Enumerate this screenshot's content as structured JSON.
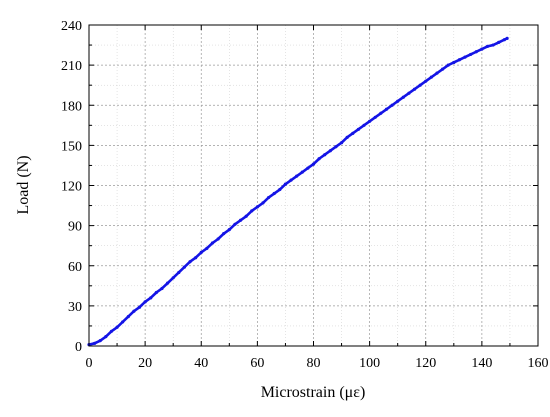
{
  "chart_data": {
    "type": "line",
    "title": "",
    "xlabel": "Microstrain (με)",
    "ylabel": "Load (N)",
    "xlim": [
      0,
      160
    ],
    "ylim": [
      0,
      240
    ],
    "x_ticks": [
      0,
      20,
      40,
      60,
      80,
      100,
      120,
      140,
      160
    ],
    "y_ticks": [
      0,
      30,
      60,
      90,
      120,
      150,
      180,
      210,
      240
    ],
    "grid": true,
    "legend": "none",
    "series": [
      {
        "color": "#1414e6",
        "x": [
          0,
          2,
          4,
          6,
          8,
          10,
          12,
          14,
          16,
          18,
          20,
          22,
          24,
          26,
          28,
          30,
          32,
          34,
          36,
          38,
          40,
          42,
          44,
          46,
          48,
          50,
          52,
          54,
          56,
          58,
          60,
          62,
          64,
          66,
          68,
          70,
          72,
          74,
          76,
          78,
          80,
          82,
          84,
          86,
          88,
          90,
          92,
          94,
          96,
          98,
          100,
          102,
          104,
          106,
          108,
          110,
          112,
          114,
          116,
          118,
          120,
          122,
          124,
          126,
          128,
          130,
          132,
          134,
          136,
          138,
          140,
          142,
          144,
          146,
          148,
          149
        ],
        "y": [
          1,
          2,
          4,
          7,
          11,
          14,
          18,
          22,
          26,
          29,
          33,
          36,
          40,
          43,
          47,
          51,
          55,
          59,
          63,
          66,
          70,
          73,
          77,
          80,
          84,
          87,
          91,
          94,
          97,
          101,
          104,
          107,
          111,
          114,
          117,
          121,
          124,
          127,
          130,
          133,
          136,
          140,
          143,
          146,
          149,
          152,
          156,
          159,
          162,
          165,
          168,
          171,
          174,
          177,
          180,
          183,
          186,
          189,
          192,
          195,
          198,
          201,
          204,
          207,
          210,
          212,
          214,
          216,
          218,
          220,
          222,
          224,
          225,
          227,
          229,
          230
        ]
      }
    ]
  }
}
